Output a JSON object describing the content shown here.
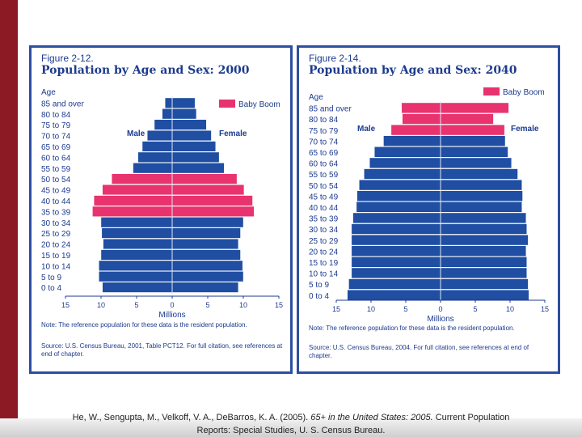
{
  "chart_data": [
    {
      "type": "bar",
      "figure_label": "Figure 2-12.",
      "title": "Population by Age and Sex: 2000",
      "ylabel": "Age",
      "xlabel": "Millions",
      "x_ticks": [
        "15",
        "10",
        "5",
        "0",
        "5",
        "10",
        "15"
      ],
      "xlim": [
        -15,
        15
      ],
      "legend": "Baby Boom",
      "male_label": "Male",
      "female_label": "Female",
      "categories": [
        "85 and over",
        "80 to 84",
        "75 to 79",
        "70 to 74",
        "65 to 69",
        "60 to 64",
        "55 to 59",
        "50 to 54",
        "45 to 49",
        "40 to 44",
        "35 to 39",
        "30 to 34",
        "25 to 29",
        "20 to 24",
        "15 to 19",
        "10 to 14",
        "5 to 9",
        "0 to 4"
      ],
      "series": [
        {
          "name": "Male",
          "values": [
            1.0,
            1.4,
            2.5,
            3.5,
            4.2,
            4.8,
            5.5,
            8.5,
            9.8,
            11.0,
            11.2,
            10.0,
            9.9,
            9.7,
            10.0,
            10.3,
            10.3,
            9.8
          ]
        },
        {
          "name": "Female",
          "values": [
            3.2,
            3.4,
            4.8,
            5.5,
            6.1,
            6.6,
            7.3,
            9.1,
            10.1,
            11.3,
            11.5,
            10.0,
            9.6,
            9.3,
            9.6,
            9.9,
            10.0,
            9.3
          ]
        }
      ],
      "baby_boom": [
        false,
        false,
        false,
        false,
        false,
        false,
        false,
        true,
        true,
        true,
        true,
        false,
        false,
        false,
        false,
        false,
        false,
        false
      ],
      "note": "Note: The reference population for these data is the resident population.",
      "source": "Source: U.S. Census Bureau, 2001, Table PCT12. For full citation, see references at end of chapter."
    },
    {
      "type": "bar",
      "figure_label": "Figure 2-14.",
      "title": "Population by Age and Sex: 2040",
      "ylabel": "Age",
      "xlabel": "Millions",
      "x_ticks": [
        "15",
        "10",
        "5",
        "0",
        "5",
        "10",
        "15"
      ],
      "xlim": [
        -15,
        15
      ],
      "legend": "Baby Boom",
      "male_label": "Male",
      "female_label": "Female",
      "categories": [
        "85 and over",
        "80 to 84",
        "75 to 79",
        "70 to 74",
        "65 to 69",
        "60 to 64",
        "55 to 59",
        "50 to 54",
        "45 to 49",
        "40 to 44",
        "35 to 39",
        "30 to 34",
        "25 to 29",
        "20 to 24",
        "15 to 19",
        "10 to 14",
        "5 to 9",
        "0 to 4"
      ],
      "series": [
        {
          "name": "Male",
          "values": [
            5.6,
            5.5,
            7.1,
            8.2,
            9.5,
            10.2,
            11.0,
            11.7,
            12.0,
            12.1,
            12.6,
            12.8,
            12.8,
            12.8,
            12.8,
            12.8,
            13.2,
            13.4
          ]
        },
        {
          "name": "Female",
          "values": [
            9.8,
            7.6,
            9.2,
            9.3,
            9.7,
            10.2,
            11.1,
            11.7,
            11.8,
            11.7,
            12.3,
            12.4,
            12.6,
            12.3,
            12.4,
            12.4,
            12.6,
            12.7
          ]
        }
      ],
      "baby_boom": [
        true,
        true,
        true,
        false,
        false,
        false,
        false,
        false,
        false,
        false,
        false,
        false,
        false,
        false,
        false,
        false,
        false,
        false
      ],
      "note": "Note: The reference population for these data is the resident population.",
      "source": "Source: U.S. Census Bureau, 2004. For full citation, see references at end of chapter."
    }
  ],
  "colors": {
    "population_bar": "#1f4ea2",
    "baby_boom_bar": "#e8336f",
    "figure_text": "#1d3b8e",
    "panel_border": "#2d4ea0",
    "slide_accent": "#8b1a24"
  },
  "citation": {
    "authors": "He, W., Sengupta, M., Velkoff, V. A., DeBarros, K. A. (2005).",
    "work_title": "65+ in the United States: 2005.",
    "rest_line1": "Current Population",
    "line2": "Reports: Special Studies, U. S. Census Bureau."
  }
}
